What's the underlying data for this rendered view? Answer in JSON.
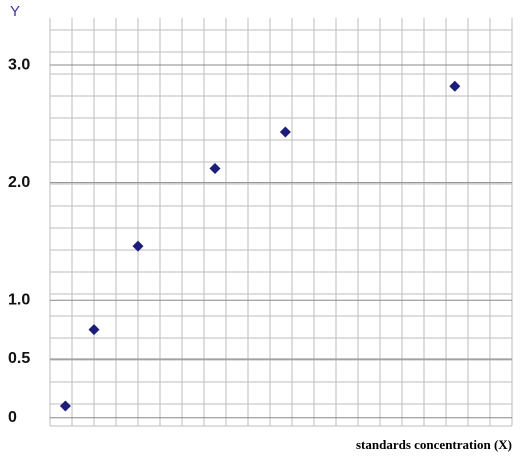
{
  "chart_data": {
    "type": "scatter",
    "y_label": "Y",
    "x_label": "standards concentration (X)",
    "xlim": [
      0,
      21
    ],
    "ylim": [
      -0.07,
      3.4
    ],
    "yticks": [
      0,
      0.5,
      {
        "value": 1,
        "label": "1.0"
      },
      {
        "value": 2,
        "label": "2.0"
      },
      {
        "value": 3,
        "label": "3.0"
      }
    ],
    "grid": true,
    "color": "#1c1c7c",
    "x": [
      0.7,
      2.0,
      4.0,
      7.5,
      10.7,
      18.4
    ],
    "values": [
      0.1,
      0.75,
      1.46,
      2.12,
      2.43,
      2.82
    ]
  }
}
